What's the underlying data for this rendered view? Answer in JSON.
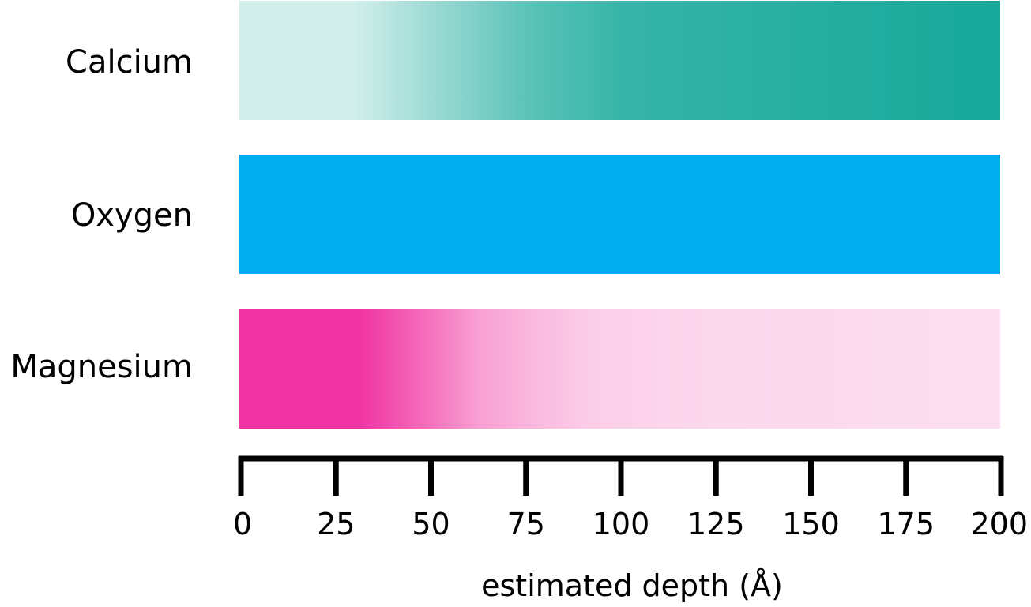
{
  "chart_data": {
    "type": "heatmap",
    "xlabel": "estimated depth (Å)",
    "xlim": [
      0,
      200
    ],
    "x_ticks": [
      0,
      25,
      50,
      75,
      100,
      125,
      150,
      175,
      200
    ],
    "x_tick_labels": [
      "0",
      "25",
      "50",
      "75",
      "100",
      "125",
      "150",
      "175",
      "200"
    ],
    "rows": [
      {
        "name": "Calcium",
        "color": "#17a99a",
        "stops": [
          {
            "depth": 0,
            "intensity": 0.2
          },
          {
            "depth": 30,
            "intensity": 0.2
          },
          {
            "depth": 50,
            "intensity": 0.42
          },
          {
            "depth": 75,
            "intensity": 0.7
          },
          {
            "depth": 100,
            "intensity": 0.86
          },
          {
            "depth": 150,
            "intensity": 0.94
          },
          {
            "depth": 200,
            "intensity": 1.0
          }
        ]
      },
      {
        "name": "Oxygen",
        "color": "#00aeef",
        "stops": [
          {
            "depth": 0,
            "intensity": 1.0
          },
          {
            "depth": 200,
            "intensity": 1.0
          }
        ]
      },
      {
        "name": "Magnesium",
        "color": "#f033a1",
        "stops": [
          {
            "depth": 0,
            "intensity": 1.0
          },
          {
            "depth": 31,
            "intensity": 1.0
          },
          {
            "depth": 50,
            "intensity": 0.7
          },
          {
            "depth": 62,
            "intensity": 0.48
          },
          {
            "depth": 75,
            "intensity": 0.36
          },
          {
            "depth": 93,
            "intensity": 0.24
          },
          {
            "depth": 125,
            "intensity": 0.19
          },
          {
            "depth": 200,
            "intensity": 0.16
          }
        ]
      }
    ]
  }
}
